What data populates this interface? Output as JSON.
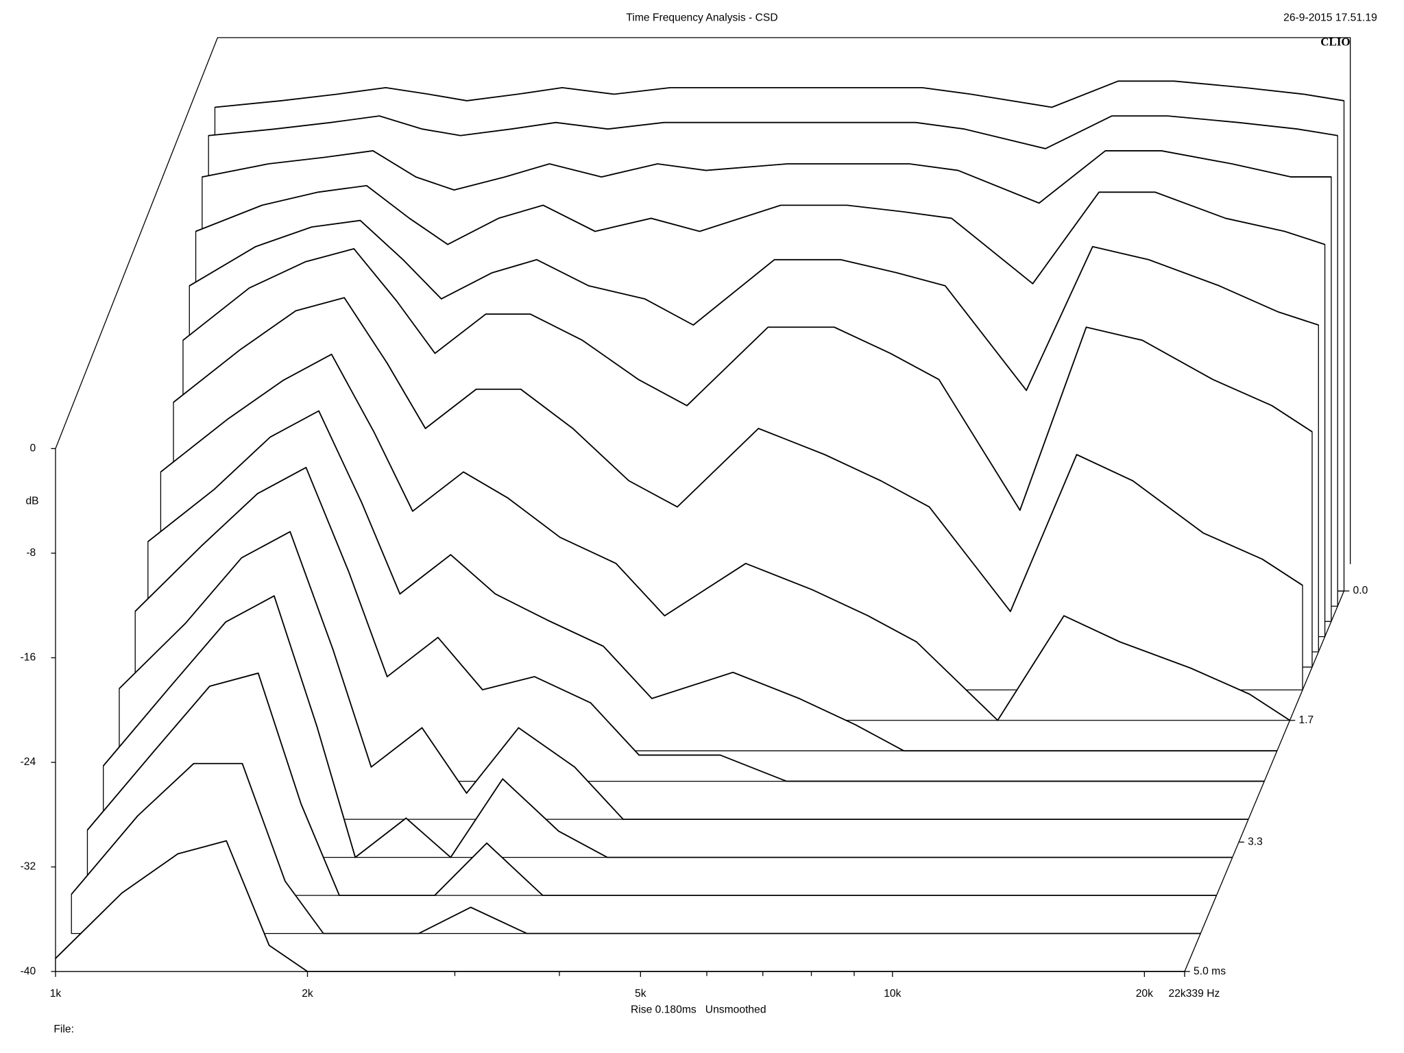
{
  "chart_data": {
    "type": "waterfall",
    "title": "Time Frequency Analysis - CSD",
    "date": "26-9-2015 17.51.19",
    "brand": "CLIO",
    "y_label": "dB",
    "settings_text": "Rise 0.180ms   Unsmoothed",
    "file_label": "File:",
    "log_x": true,
    "color": "#000000",
    "xlim": [
      1000,
      22339
    ],
    "xticks": [
      {
        "value": 1000,
        "label": "1k"
      },
      {
        "value": 2000,
        "label": "2k"
      },
      {
        "value": 5000,
        "label": "5k"
      },
      {
        "value": 10000,
        "label": "10k"
      },
      {
        "value": 20000,
        "label": "20k"
      },
      {
        "value": 22339,
        "label": "22k339 Hz"
      }
    ],
    "xminorticks": [
      3000,
      4000,
      6000,
      7000,
      8000,
      9000
    ],
    "ylim": [
      -40,
      0
    ],
    "yticks": [
      0,
      -8,
      -16,
      -24,
      -32,
      -40
    ],
    "zlim": [
      0,
      5
    ],
    "zticks": [
      {
        "value": 0,
        "label": "0.0"
      },
      1.7,
      3.3,
      {
        "value": 5,
        "label": "5.0 ms"
      }
    ],
    "x": [
      1000,
      1200,
      1400,
      1600,
      1800,
      2000,
      2300,
      2600,
      3000,
      3500,
      4000,
      5000,
      6000,
      7000,
      8000,
      10000,
      12000,
      14000,
      17000,
      20000,
      22339
    ],
    "series": [
      {
        "time": 0,
        "values": [
          -3,
          -2.5,
          -2,
          -1.5,
          -2,
          -2.5,
          -2,
          -1.5,
          -2,
          -1.5,
          -1.5,
          -1.5,
          -1.5,
          -1.5,
          -2,
          -3,
          -1,
          -1,
          -1.5,
          -2,
          -2.5
        ]
      },
      {
        "time": 0.2,
        "values": [
          -4,
          -3.5,
          -3,
          -2.5,
          -3.5,
          -4,
          -3.5,
          -3,
          -3.5,
          -3,
          -3,
          -3,
          -3,
          -3,
          -3.5,
          -5,
          -2.5,
          -2.5,
          -3,
          -3.5,
          -4
        ]
      },
      {
        "time": 0.4,
        "values": [
          -6,
          -5,
          -4.5,
          -4,
          -6,
          -7,
          -6,
          -5,
          -6,
          -5,
          -5.5,
          -5,
          -5,
          -5,
          -5.5,
          -8,
          -4,
          -4,
          -5,
          -6,
          -6
        ]
      },
      {
        "time": 0.6,
        "values": [
          -9,
          -7,
          -6,
          -5.5,
          -8,
          -10,
          -8,
          -7,
          -9,
          -8,
          -9,
          -7,
          -7,
          -7.5,
          -8,
          -13,
          -6,
          -6,
          -8,
          -9,
          -10
        ]
      },
      {
        "time": 0.8,
        "values": [
          -12,
          -9,
          -7.5,
          -7,
          -10,
          -13,
          -11,
          -10,
          -12,
          -13,
          -15,
          -10,
          -10,
          -11,
          -12,
          -20,
          -9,
          -10,
          -12,
          -14,
          -15
        ]
      },
      {
        "time": 1.0,
        "values": [
          -15,
          -11,
          -9,
          -8,
          -12,
          -16,
          -13,
          -13,
          -15,
          -18,
          -20,
          -14,
          -14,
          -16,
          -18,
          -28,
          -14,
          -15,
          -18,
          -20,
          -22
        ]
      },
      {
        "time": 1.3,
        "values": [
          -18,
          -14,
          -11,
          -10,
          -15,
          -20,
          -17,
          -17,
          -20,
          -24,
          -26,
          -20,
          -22,
          -24,
          -26,
          -34,
          -22,
          -24,
          -28,
          -30,
          -32
        ]
      },
      {
        "time": 1.7,
        "values": [
          -21,
          -17,
          -14,
          -12,
          -18,
          -24,
          -21,
          -23,
          -26,
          -28,
          -32,
          -28,
          -30,
          -32,
          -34,
          -40,
          -32,
          -34,
          -36,
          -38,
          -40
        ]
      },
      {
        "time": 2.1,
        "values": [
          -24,
          -20,
          -16,
          -14,
          -21,
          -28,
          -25,
          -28,
          -30,
          -32,
          -36,
          -34,
          -36,
          -38,
          -40,
          -40,
          -40,
          -40,
          -40,
          -40,
          -40
        ]
      },
      {
        "time": 2.5,
        "values": [
          -27,
          -22,
          -18,
          -16,
          -24,
          -32,
          -29,
          -33,
          -32,
          -34,
          -38,
          -38,
          -40,
          -40,
          -40,
          -40,
          -40,
          -40,
          -40,
          -40,
          -40
        ]
      },
      {
        "time": 3.0,
        "values": [
          -30,
          -25,
          -20,
          -18,
          -27,
          -36,
          -33,
          -38,
          -33,
          -36,
          -40,
          -40,
          -40,
          -40,
          -40,
          -40,
          -40,
          -40,
          -40,
          -40,
          -40
        ]
      },
      {
        "time": 3.5,
        "values": [
          -33,
          -27,
          -22,
          -20,
          -30,
          -40,
          -37,
          -40,
          -34,
          -38,
          -40,
          -40,
          -40,
          -40,
          -40,
          -40,
          -40,
          -40,
          -40,
          -40,
          -40
        ]
      },
      {
        "time": 4.0,
        "values": [
          -35,
          -29,
          -24,
          -23,
          -33,
          -40,
          -40,
          -40,
          -36,
          -40,
          -40,
          -40,
          -40,
          -40,
          -40,
          -40,
          -40,
          -40,
          -40,
          -40,
          -40
        ]
      },
      {
        "time": 4.5,
        "values": [
          -37,
          -31,
          -27,
          -27,
          -36,
          -40,
          -40,
          -40,
          -38,
          -40,
          -40,
          -40,
          -40,
          -40,
          -40,
          -40,
          -40,
          -40,
          -40,
          -40,
          -40
        ]
      },
      {
        "time": 5.0,
        "values": [
          -39,
          -34,
          -31,
          -30,
          -38,
          -40,
          -40,
          -40,
          -40,
          -40,
          -40,
          -40,
          -40,
          -40,
          -40,
          -40,
          -40,
          -40,
          -40,
          -40,
          -40
        ]
      }
    ]
  }
}
